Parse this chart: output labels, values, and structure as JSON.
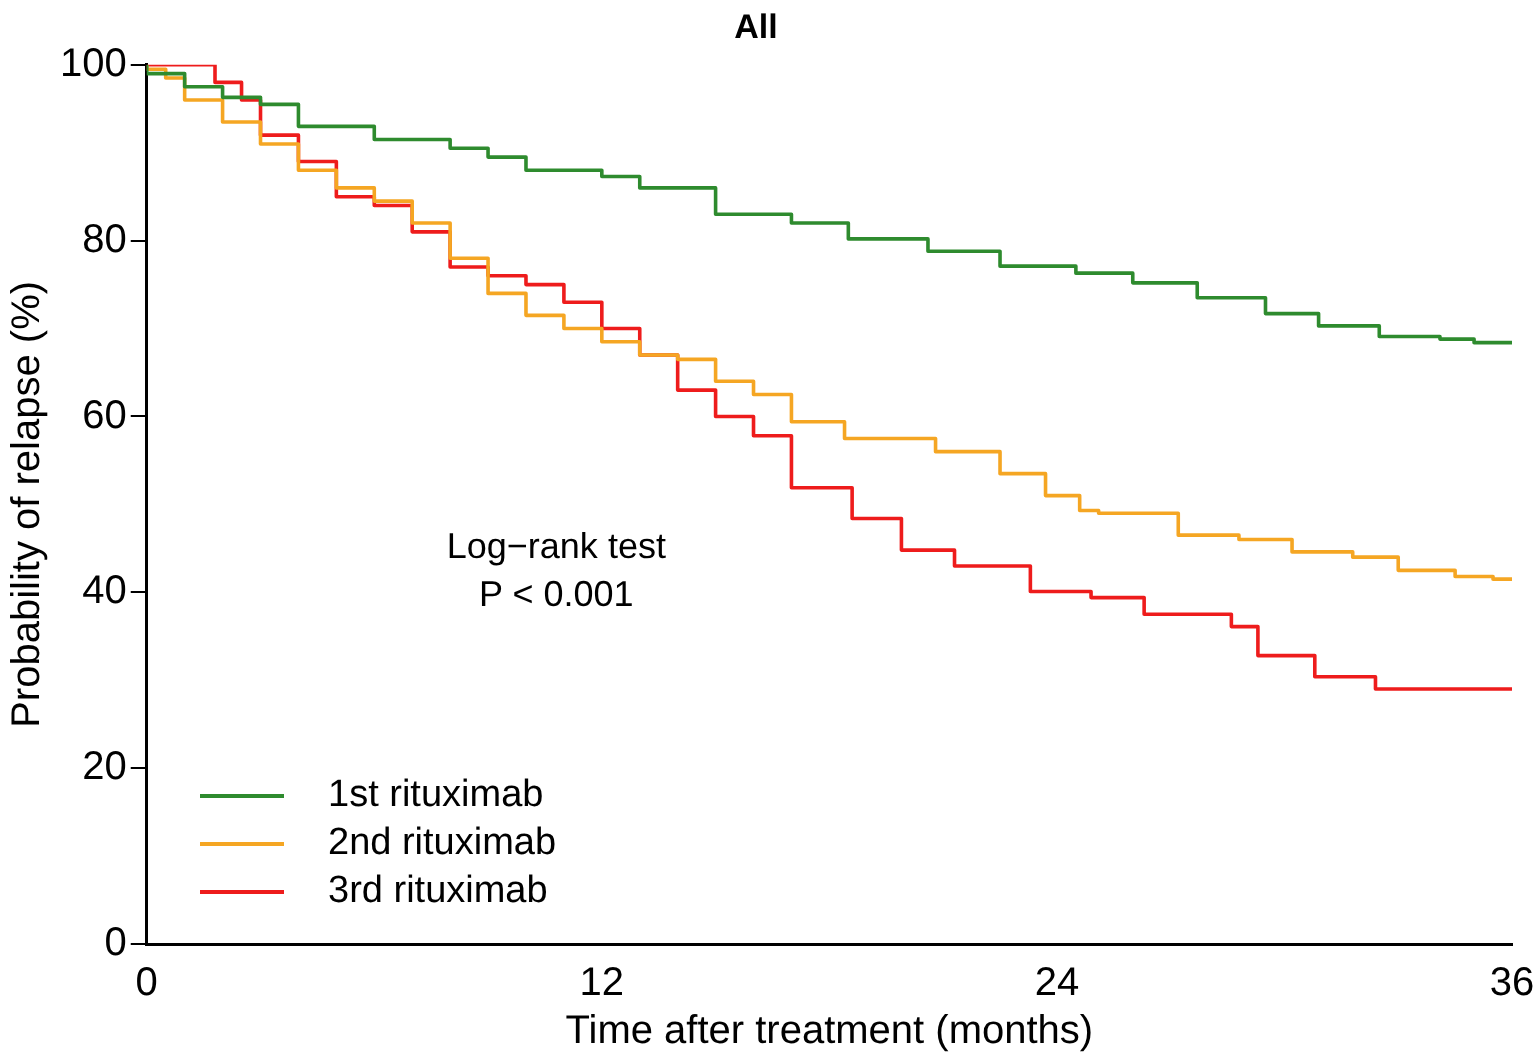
{
  "chart_data": {
    "type": "step",
    "title": "All",
    "xlabel": "Time after treatment (months)",
    "ylabel": "Probability of relapse (%)",
    "xlim": [
      0,
      36
    ],
    "xticks": [
      0,
      12,
      24,
      36
    ],
    "ylim": [
      0,
      100
    ],
    "yticks": [
      0,
      20,
      40,
      60,
      80,
      100
    ],
    "grid": false,
    "legend": "bottom left",
    "annotations": [
      "Log−rank test",
      "P < 0.001"
    ],
    "series": [
      {
        "name": "1st rituximab",
        "color": "#2e8b2e",
        "x": [
          0,
          1,
          2,
          3,
          4,
          6,
          8,
          9,
          10,
          12,
          13,
          15,
          17,
          18.5,
          20.6,
          22.5,
          24.5,
          26,
          27.7,
          29.5,
          30.9,
          32.5,
          34.1,
          35,
          36
        ],
        "values": [
          100,
          99,
          97.5,
          96.3,
          95.5,
          93,
          91.5,
          90.5,
          89.5,
          88,
          87.3,
          86,
          83,
          82,
          80.2,
          78.8,
          77.1,
          76.3,
          75.2,
          73.5,
          71.7,
          70.3,
          69.1,
          68.8,
          68.4
        ]
      },
      {
        "name": "2nd rituximab",
        "color": "#f5a623",
        "x": [
          0,
          0.5,
          1,
          2,
          3,
          4,
          5,
          6,
          7,
          8,
          9,
          10,
          11,
          12,
          13,
          14,
          15,
          16,
          17,
          18.4,
          20.8,
          22.5,
          23.7,
          24.6,
          25.1,
          27.2,
          28.8,
          30.2,
          31.8,
          33,
          34.5,
          35.5,
          36
        ],
        "values": [
          100,
          99.5,
          98.5,
          96,
          93.5,
          91,
          88,
          86,
          84.5,
          82,
          78,
          74,
          71.5,
          70,
          68.5,
          67,
          66.5,
          64,
          62.5,
          59.4,
          57.5,
          56,
          53.5,
          51,
          49.3,
          49,
          46.5,
          46,
          44.6,
          44,
          42.5,
          41.8,
          41.5
        ]
      },
      {
        "name": "3rd rituximab",
        "color": "#ee1c1c",
        "x": [
          0,
          1.8,
          2.5,
          3,
          4,
          5,
          6,
          7,
          8,
          9,
          10,
          11,
          12,
          13,
          14,
          15,
          16,
          17,
          18.6,
          19.9,
          21.3,
          23.3,
          24.9,
          26.3,
          28.6,
          29.3,
          30.8,
          32.4,
          35.7,
          36
        ],
        "values": [
          100,
          100,
          98,
          96,
          92,
          89,
          85,
          84,
          81,
          77,
          76,
          75,
          73,
          70,
          67,
          63,
          60,
          57.8,
          51.9,
          48.4,
          44.8,
          43,
          40.1,
          39.4,
          37.5,
          36.1,
          32.8,
          30.4,
          29,
          29
        ]
      }
    ]
  }
}
